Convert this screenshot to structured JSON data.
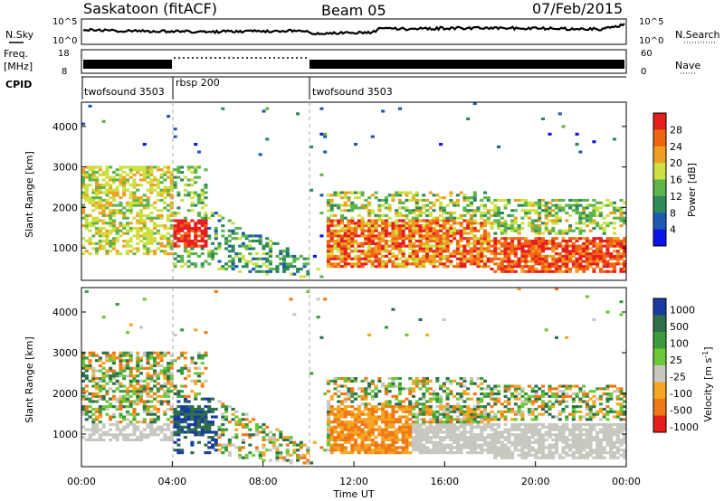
{
  "header": {
    "station": "Saskatoon (fitACF)",
    "beam": "Beam 05",
    "date": "07/Feb/2015"
  },
  "strips": {
    "nsky_label": "N.Sky",
    "nsky_ticks": [
      "10^5",
      "10^0"
    ],
    "nsearch_label": "N.Search",
    "nsearch_ticks": [
      "10^5",
      "10^0"
    ],
    "freq_label": "Freq.",
    "freq_unit": "[MHz]",
    "freq_ticks": [
      "18",
      "8"
    ],
    "nave_label": "Nave",
    "nave_ticks": [
      "60",
      "0"
    ],
    "cpid_label": "CPID",
    "cpid_segments": [
      {
        "name": "twofsound 3503",
        "start_h": 0,
        "end_h": 4
      },
      {
        "name": "rbsp 200",
        "start_h": 4,
        "end_h": 10
      },
      {
        "name": "twofsound 3503",
        "start_h": 10,
        "end_h": 24
      }
    ]
  },
  "chart_data": [
    {
      "type": "heatmap",
      "name": "power",
      "xlabel": "",
      "ylabel": "Slant Range [km]",
      "x_range_h": [
        0,
        24
      ],
      "ylim": [
        200,
        4600
      ],
      "yticks": [
        "1000",
        "2000",
        "3000",
        "4000"
      ],
      "colorbar_label": "Power [dB]",
      "colorbar_ticks": [
        "4",
        "8",
        "12",
        "16",
        "20",
        "24",
        "28"
      ],
      "colors": [
        "#0a14e6",
        "#1e5ab4",
        "#2e8a5a",
        "#5cb44a",
        "#cde040",
        "#f0a020",
        "#f06414",
        "#e61e1e"
      ]
    },
    {
      "type": "heatmap",
      "name": "velocity",
      "xlabel": "Time UT",
      "ylabel": "Slant Range [km]",
      "x_range_h": [
        0,
        24
      ],
      "ylim": [
        200,
        4600
      ],
      "yticks": [
        "1000",
        "2000",
        "3000",
        "4000"
      ],
      "xticks": [
        "00:00",
        "04:00",
        "08:00",
        "12:00",
        "16:00",
        "20:00",
        "00:00"
      ],
      "colorbar_label": "Velocity [m s",
      "colorbar_label_sup": "-1",
      "colorbar_label_end": "]",
      "colorbar_ticks": [
        "1000",
        "500",
        "100",
        "25",
        "-25",
        "-100",
        "-500",
        "-1000"
      ],
      "colors": [
        "#1a3ca0",
        "#2e6e4a",
        "#3c9c3c",
        "#6cc836",
        "#c8c8c0",
        "#f5a623",
        "#f07814",
        "#e81e1e"
      ]
    }
  ]
}
